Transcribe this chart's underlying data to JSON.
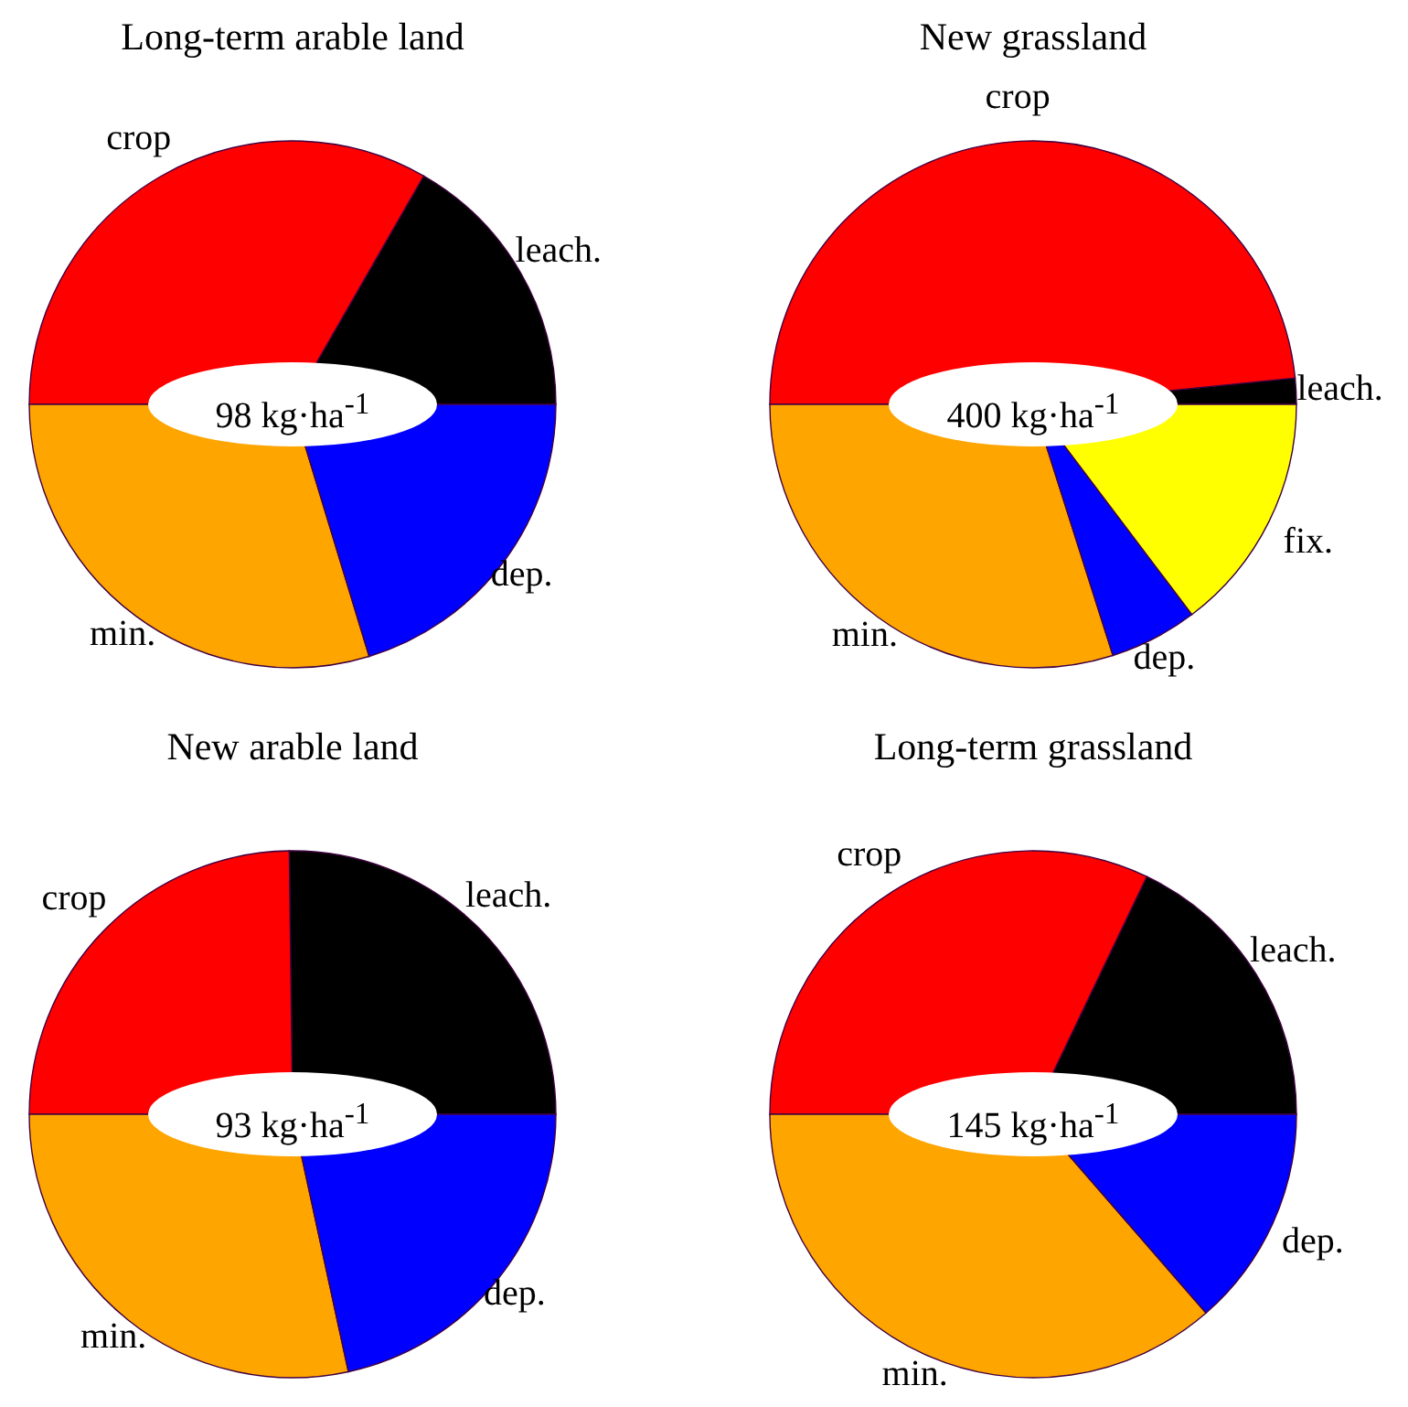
{
  "chart_data": [
    {
      "type": "pie",
      "title": "Long-term arable land",
      "categories": [
        "leach.",
        "crop",
        "min.",
        "dep."
      ],
      "values": [
        16.7,
        33.3,
        29.7,
        20.3
      ],
      "colors": [
        "#000000",
        "#ff0000",
        "#ffa500",
        "#0000ff"
      ],
      "annotations": [
        "98 kg·ha$^{-1}$"
      ]
    },
    {
      "type": "pie",
      "title": "New grassland",
      "categories": [
        "leach.",
        "crop",
        "min.",
        "dep.",
        "fix."
      ],
      "values": [
        1.6,
        48.4,
        29.9,
        5.4,
        14.7
      ],
      "colors": [
        "#000000",
        "#ff0000",
        "#ffa500",
        "#0000ff",
        "#ffff00"
      ],
      "annotations": [
        "400 kg·ha$^{-1}$"
      ]
    },
    {
      "type": "pie",
      "title": "New arable land",
      "categories": [
        "leach.",
        "crop",
        "min.",
        "dep."
      ],
      "values": [
        25.2,
        24.8,
        28.4,
        21.6
      ],
      "colors": [
        "#000000",
        "#ff0000",
        "#ffa500",
        "#0000ff"
      ],
      "annotations": [
        "93 kg·ha$^{-1}$"
      ]
    },
    {
      "type": "pie",
      "title": "Long-term grassland",
      "categories": [
        "leach.",
        "crop",
        "min.",
        "dep."
      ],
      "values": [
        17.9,
        32.1,
        36.4,
        13.6
      ],
      "colors": [
        "#000000",
        "#ff0000",
        "#ffa500",
        "#0000ff"
      ],
      "annotations": [
        "145 kg·ha$^{-1}$"
      ]
    }
  ]
}
